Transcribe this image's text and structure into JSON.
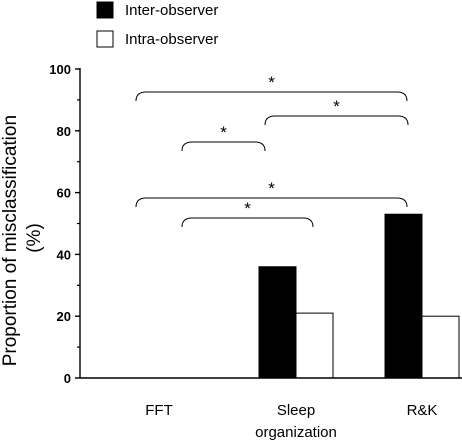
{
  "chart_data": {
    "type": "bar",
    "ylabel_line1": "Proportion of misclassification",
    "ylabel_line2": "(%)",
    "ylim": [
      0,
      100
    ],
    "yticks": [
      "0",
      "20",
      "40",
      "60",
      "80",
      "100"
    ],
    "categories": [
      {
        "lines": [
          "FFT"
        ]
      },
      {
        "lines": [
          "Sleep",
          "organization"
        ]
      },
      {
        "lines": [
          "R&K"
        ]
      }
    ],
    "series": [
      {
        "name": "Inter-observer",
        "fill": "#000000",
        "values": [
          0,
          36,
          53
        ]
      },
      {
        "name": "Intra-observer",
        "fill": "#ffffff",
        "values": [
          0,
          21,
          20
        ]
      }
    ],
    "legend_position": "top",
    "significance": [
      {
        "from": 0,
        "to": 2,
        "label": "*"
      },
      {
        "from": 1,
        "to": 2,
        "label": "*"
      },
      {
        "from": 0,
        "to": 1,
        "label": "*"
      },
      {
        "from": 0,
        "to": 2,
        "label": "*"
      },
      {
        "from": 0,
        "to": 1,
        "label": "*"
      }
    ]
  }
}
